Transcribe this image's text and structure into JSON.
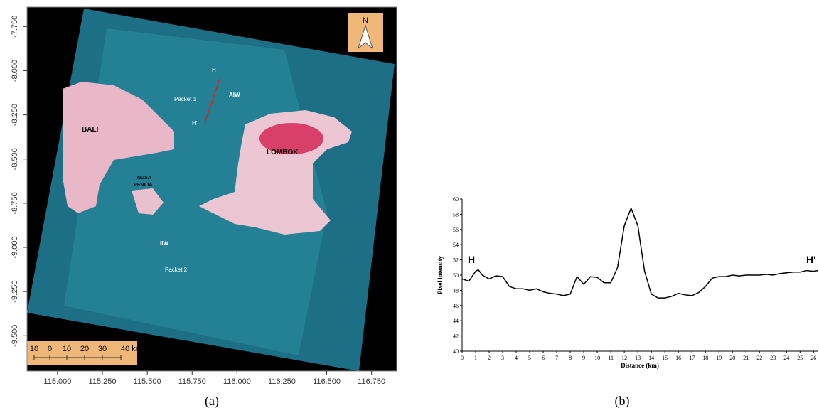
{
  "chart_data": [
    {
      "type": "image",
      "xlim": [
        114.83,
        116.89
      ],
      "ylim": [
        -9.7,
        -7.64
      ],
      "xticks": [
        {
          "value": 115,
          "label": "115.000"
        },
        {
          "value": 115.25,
          "label": "115.250"
        },
        {
          "value": 115.5,
          "label": "115.500"
        },
        {
          "value": 115.75,
          "label": "115.750"
        },
        {
          "value": 116,
          "label": "116.000"
        },
        {
          "value": 116.25,
          "label": "116.250"
        },
        {
          "value": 116.5,
          "label": "116.500"
        },
        {
          "value": 116.75,
          "label": "116.750"
        }
      ],
      "yticks": [
        {
          "value": -7.75,
          "label": "-7.750"
        },
        {
          "value": -8,
          "label": "-8.000"
        },
        {
          "value": -8.25,
          "label": "-8.250"
        },
        {
          "value": -8.5,
          "label": "-8.500"
        },
        {
          "value": -8.75,
          "label": "-8.750"
        },
        {
          "value": -9,
          "label": "-9.000"
        },
        {
          "value": -9.25,
          "label": "-9.250"
        },
        {
          "value": -9.5,
          "label": "-9.500"
        }
      ],
      "annotations": {
        "h": "H",
        "h_prime": "H'",
        "packet1": "Packet 1",
        "aiw": "AIW",
        "bali": "BALI",
        "lombok": "LOMBOK",
        "nusa": [
          "NUSA",
          "PENIDA"
        ],
        "iiw": "IIW",
        "packet2": "Packet 2",
        "north": "N"
      },
      "scale_bar": [
        "10",
        "0",
        "10",
        "20",
        "30",
        "40 km"
      ]
    },
    {
      "type": "line",
      "x_label": "Distance (km)",
      "y_label": "Pixel intensity",
      "annotations": {
        "start": "H",
        "end": "H'"
      },
      "xlim": [
        0,
        26.3
      ],
      "ylim": [
        40,
        60
      ],
      "xticks": [
        0,
        1,
        2,
        3,
        4,
        5,
        6,
        7,
        8,
        9,
        10,
        11,
        12,
        13,
        14,
        15,
        16,
        17,
        18,
        19,
        20,
        21,
        22,
        23,
        24,
        25,
        26
      ],
      "yticks": [
        40,
        42,
        44,
        46,
        48,
        50,
        52,
        54,
        56,
        58,
        60
      ],
      "x": [
        0,
        0.5,
        1,
        1.2,
        1.5,
        2,
        2.5,
        3,
        3.5,
        4,
        4.5,
        5,
        5.5,
        6,
        6.5,
        7,
        7.5,
        8,
        8.5,
        9,
        9.5,
        10,
        10.5,
        11,
        11.5,
        12,
        12.5,
        13,
        13.5,
        14,
        14.5,
        15,
        15.5,
        16,
        16.5,
        17,
        17.5,
        18,
        18.5,
        19,
        19.5,
        20,
        20.5,
        21,
        21.5,
        22,
        22.5,
        23,
        23.5,
        24,
        24.5,
        25,
        25.5,
        26,
        26.3
      ],
      "series": [
        {
          "color": "#000000",
          "values": [
            49.5,
            49.2,
            50.5,
            50.7,
            50.0,
            49.5,
            49.9,
            49.8,
            48.5,
            48.2,
            48.2,
            48.0,
            48.2,
            47.8,
            47.6,
            47.5,
            47.3,
            47.5,
            49.8,
            48.8,
            49.8,
            49.7,
            49.0,
            49.0,
            51.0,
            56.5,
            58.8,
            56.5,
            50.5,
            47.5,
            47.0,
            47.0,
            47.2,
            47.6,
            47.4,
            47.3,
            47.7,
            48.5,
            49.6,
            49.8,
            49.8,
            50.0,
            49.9,
            50.0,
            50.0,
            50.0,
            50.1,
            50.0,
            50.2,
            50.3,
            50.4,
            50.4,
            50.6,
            50.5,
            50.6
          ]
        }
      ]
    }
  ],
  "captions": [
    "(a)",
    "(b)"
  ]
}
